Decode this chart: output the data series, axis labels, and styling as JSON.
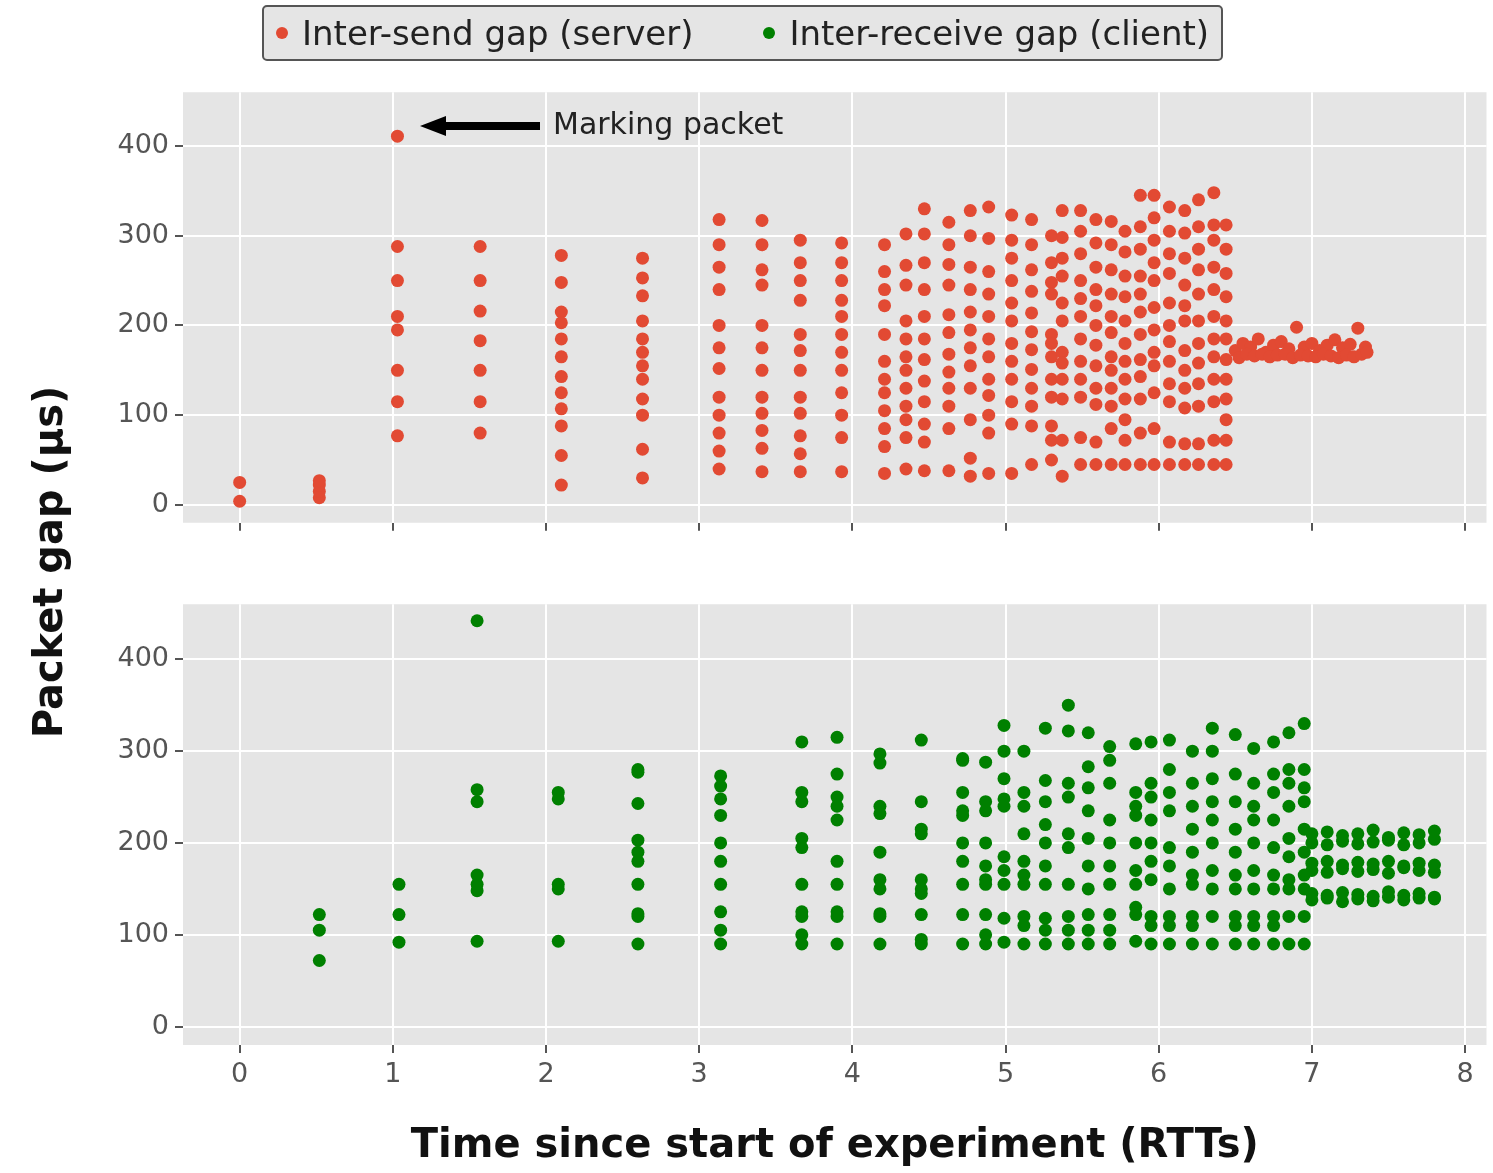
{
  "chart_data": [
    {
      "type": "scatter",
      "ylabel": "Packet gap (μs)",
      "legend": "top",
      "grid": true,
      "marker": "circle",
      "tick_labels": "y",
      "xlim": [
        -0.37,
        8.14
      ],
      "xticks": [
        0,
        1,
        2,
        3,
        4,
        5,
        6,
        7,
        8
      ],
      "ylim": [
        -20,
        460
      ],
      "yticks": [
        0,
        100,
        200,
        300,
        400
      ],
      "annotations": [
        "Marking packet"
      ],
      "series": [
        {
          "name": "Inter-send gap (server)",
          "color": "#e24a33",
          "x": [
            0,
            0,
            0.52,
            0.52,
            0.52,
            0.52,
            1.03,
            1.03,
            1.03,
            1.03,
            1.03,
            1.03,
            1.03,
            1.03,
            1.57,
            1.57,
            1.57,
            1.57,
            1.57,
            1.57,
            1.57,
            2.1,
            2.1,
            2.1,
            2.1,
            2.1,
            2.1,
            2.1,
            2.1,
            2.1,
            2.1,
            2.1,
            2.1,
            2.63,
            2.63,
            2.63,
            2.63,
            2.63,
            2.63,
            2.63,
            2.63,
            2.63,
            2.63,
            2.63,
            2.63,
            3.13,
            3.13,
            3.13,
            3.13,
            3.13,
            3.13,
            3.13,
            3.13,
            3.13,
            3.13,
            3.13,
            3.13,
            3.41,
            3.41,
            3.41,
            3.41,
            3.41,
            3.41,
            3.41,
            3.41,
            3.41,
            3.41,
            3.41,
            3.41,
            3.66,
            3.66,
            3.66,
            3.66,
            3.66,
            3.66,
            3.66,
            3.66,
            3.66,
            3.66,
            3.66,
            3.66,
            3.93,
            3.93,
            3.93,
            3.93,
            3.93,
            3.93,
            3.93,
            3.93,
            3.93,
            3.93,
            3.93,
            3.93,
            4.21,
            4.21,
            4.21,
            4.21,
            4.21,
            4.21,
            4.21,
            4.21,
            4.21,
            4.21,
            4.21,
            4.21,
            4.35,
            4.35,
            4.35,
            4.35,
            4.35,
            4.35,
            4.35,
            4.35,
            4.35,
            4.35,
            4.35,
            4.35,
            4.47,
            4.47,
            4.47,
            4.47,
            4.47,
            4.47,
            4.47,
            4.47,
            4.47,
            4.47,
            4.47,
            4.47,
            4.63,
            4.63,
            4.63,
            4.63,
            4.63,
            4.63,
            4.63,
            4.63,
            4.63,
            4.63,
            4.63,
            4.63,
            4.77,
            4.77,
            4.77,
            4.77,
            4.77,
            4.77,
            4.77,
            4.77,
            4.77,
            4.77,
            4.77,
            4.77,
            4.89,
            4.89,
            4.89,
            4.89,
            4.89,
            4.89,
            4.89,
            4.89,
            4.89,
            4.89,
            4.89,
            4.89,
            5.04,
            5.04,
            5.04,
            5.04,
            5.04,
            5.04,
            5.04,
            5.04,
            5.04,
            5.04,
            5.04,
            5.04,
            5.17,
            5.17,
            5.17,
            5.17,
            5.17,
            5.17,
            5.17,
            5.17,
            5.17,
            5.17,
            5.17,
            5.17,
            5.3,
            5.3,
            5.3,
            5.3,
            5.3,
            5.3,
            5.3,
            5.3,
            5.3,
            5.3,
            5.3,
            5.3,
            5.37,
            5.37,
            5.37,
            5.37,
            5.37,
            5.37,
            5.37,
            5.37,
            5.37,
            5.37,
            5.37,
            5.37,
            5.49,
            5.49,
            5.49,
            5.49,
            5.49,
            5.49,
            5.49,
            5.49,
            5.49,
            5.49,
            5.49,
            5.49,
            5.59,
            5.59,
            5.59,
            5.59,
            5.59,
            5.59,
            5.59,
            5.59,
            5.59,
            5.59,
            5.59,
            5.59,
            5.69,
            5.69,
            5.69,
            5.69,
            5.69,
            5.69,
            5.69,
            5.69,
            5.69,
            5.69,
            5.69,
            5.69,
            5.78,
            5.78,
            5.78,
            5.78,
            5.78,
            5.78,
            5.78,
            5.78,
            5.78,
            5.78,
            5.78,
            5.78,
            5.88,
            5.88,
            5.88,
            5.88,
            5.88,
            5.88,
            5.88,
            5.88,
            5.88,
            5.88,
            5.88,
            5.88,
            5.97,
            5.97,
            5.97,
            5.97,
            5.97,
            5.97,
            5.97,
            5.97,
            5.97,
            5.97,
            5.97,
            5.97,
            6.07,
            6.07,
            6.07,
            6.07,
            6.07,
            6.07,
            6.07,
            6.07,
            6.07,
            6.07,
            6.07,
            6.07,
            6.17,
            6.17,
            6.17,
            6.17,
            6.17,
            6.17,
            6.17,
            6.17,
            6.17,
            6.17,
            6.17,
            6.17,
            6.26,
            6.26,
            6.26,
            6.26,
            6.26,
            6.26,
            6.26,
            6.26,
            6.26,
            6.26,
            6.26,
            6.26,
            6.36,
            6.36,
            6.36,
            6.36,
            6.36,
            6.36,
            6.36,
            6.36,
            6.36,
            6.36,
            6.36,
            6.36,
            6.44,
            6.44,
            6.44,
            6.44,
            6.44,
            6.44,
            6.44,
            6.44,
            6.44,
            6.44,
            6.44,
            6.44,
            6.5,
            6.55,
            6.6,
            6.65,
            6.7,
            6.75,
            6.8,
            6.85,
            6.9,
            6.95,
            7.0,
            7.05,
            7.1,
            7.15,
            7.2,
            7.25,
            7.3,
            7.35,
            6.525,
            6.575,
            6.625,
            6.675,
            6.725,
            6.775,
            6.825,
            6.875,
            6.925,
            6.975,
            7.025,
            7.075,
            7.125,
            7.175,
            7.225,
            7.275,
            7.325,
            7.36
          ],
          "values": [
            4,
            25,
            8,
            15,
            22,
            27,
            411,
            288,
            250,
            210,
            195,
            150,
            115,
            77,
            288,
            250,
            216,
            183,
            150,
            115,
            80,
            278,
            248,
            215,
            203,
            185,
            165,
            143,
            125,
            107,
            88,
            55,
            22,
            275,
            253,
            233,
            205,
            185,
            170,
            155,
            140,
            118,
            100,
            62,
            30,
            318,
            290,
            265,
            240,
            200,
            175,
            152,
            120,
            100,
            80,
            60,
            40,
            317,
            290,
            262,
            245,
            200,
            175,
            150,
            120,
            102,
            83,
            63,
            37,
            295,
            270,
            250,
            228,
            190,
            172,
            150,
            120,
            102,
            77,
            57,
            37,
            292,
            270,
            250,
            228,
            210,
            190,
            170,
            150,
            125,
            100,
            75,
            37,
            290,
            260,
            240,
            222,
            190,
            160,
            140,
            125,
            105,
            85,
            65,
            35,
            302,
            267,
            245,
            205,
            185,
            165,
            150,
            130,
            110,
            95,
            75,
            40,
            330,
            302,
            270,
            240,
            210,
            185,
            162,
            138,
            115,
            90,
            70,
            38,
            315,
            290,
            268,
            245,
            212,
            192,
            168,
            148,
            130,
            110,
            85,
            38,
            328,
            300,
            265,
            240,
            215,
            195,
            175,
            155,
            130,
            95,
            52,
            32,
            332,
            297,
            260,
            235,
            210,
            185,
            165,
            140,
            122,
            100,
            80,
            35,
            323,
            295,
            275,
            250,
            225,
            205,
            180,
            160,
            140,
            115,
            90,
            35,
            318,
            290,
            262,
            238,
            214,
            193,
            173,
            151,
            130,
            110,
            88,
            45,
            300,
            270,
            248,
            235,
            190,
            180,
            165,
            140,
            120,
            88,
            72,
            50,
            328,
            298,
            275,
            255,
            225,
            205,
            170,
            158,
            140,
            118,
            72,
            32,
            328,
            305,
            280,
            250,
            230,
            210,
            185,
            160,
            140,
            120,
            75,
            45,
            318,
            292,
            265,
            240,
            222,
            200,
            178,
            155,
            130,
            112,
            70,
            45,
            316,
            290,
            262,
            235,
            210,
            192,
            165,
            150,
            130,
            110,
            85,
            45,
            305,
            282,
            255,
            232,
            205,
            180,
            160,
            140,
            118,
            95,
            72,
            45,
            345,
            310,
            285,
            255,
            235,
            215,
            190,
            162,
            143,
            118,
            80,
            45,
            345,
            320,
            295,
            270,
            250,
            220,
            195,
            170,
            155,
            125,
            85,
            45,
            332,
            305,
            280,
            258,
            225,
            200,
            182,
            160,
            135,
            115,
            70,
            45,
            328,
            303,
            275,
            245,
            222,
            205,
            172,
            150,
            130,
            108,
            68,
            45,
            340,
            310,
            285,
            262,
            235,
            205,
            180,
            158,
            135,
            110,
            68,
            45,
            348,
            312,
            295,
            265,
            240,
            210,
            185,
            165,
            140,
            115,
            72,
            45,
            312,
            285,
            258,
            232,
            205,
            185,
            162,
            140,
            118,
            95,
            72,
            45,
            172,
            180,
            176,
            185,
            170,
            178,
            182,
            174,
            198,
            176,
            180,
            172,
            178,
            184,
            175,
            179,
            197,
            176,
            164,
            168,
            166,
            168,
            165,
            167,
            168,
            164,
            167,
            166,
            165,
            168,
            166,
            164,
            167,
            165,
            168,
            170
          ]
        }
      ]
    },
    {
      "type": "scatter",
      "xlabel": "Time since start of experiment (RTTs)",
      "grid": true,
      "marker": "circle",
      "xlim": [
        -0.37,
        8.14
      ],
      "xticks": [
        0,
        1,
        2,
        3,
        4,
        5,
        6,
        7,
        8
      ],
      "ylim": [
        -20,
        460
      ],
      "yticks": [
        0,
        100,
        200,
        300,
        400
      ],
      "series": [
        {
          "name": "Inter-receive gap (client)",
          "color": "#008000",
          "x": [
            0.52,
            0.52,
            0.52,
            1.04,
            1.04,
            1.04,
            1.55,
            1.55,
            1.55,
            1.55,
            1.55,
            1.55,
            1.55,
            2.08,
            2.08,
            2.08,
            2.08,
            2.08,
            2.6,
            2.6,
            2.6,
            2.6,
            2.6,
            2.6,
            2.6,
            2.6,
            2.6,
            2.6,
            3.14,
            3.14,
            3.14,
            3.14,
            3.14,
            3.14,
            3.14,
            3.14,
            3.14,
            3.14,
            3.67,
            3.67,
            3.67,
            3.67,
            3.67,
            3.67,
            3.67,
            3.67,
            3.67,
            3.67,
            3.9,
            3.9,
            3.9,
            3.9,
            3.9,
            3.9,
            3.9,
            3.9,
            3.9,
            3.9,
            4.18,
            4.18,
            4.18,
            4.18,
            4.18,
            4.18,
            4.18,
            4.18,
            4.18,
            4.18,
            4.45,
            4.45,
            4.45,
            4.45,
            4.45,
            4.45,
            4.45,
            4.45,
            4.45,
            4.45,
            4.72,
            4.72,
            4.72,
            4.72,
            4.72,
            4.72,
            4.72,
            4.72,
            4.72,
            4.72,
            4.87,
            4.87,
            4.87,
            4.87,
            4.87,
            4.87,
            4.87,
            4.87,
            4.87,
            4.87,
            4.99,
            4.99,
            4.99,
            4.99,
            4.99,
            4.99,
            4.99,
            4.99,
            4.99,
            4.99,
            5.12,
            5.12,
            5.12,
            5.12,
            5.12,
            5.12,
            5.12,
            5.12,
            5.12,
            5.12,
            5.26,
            5.26,
            5.26,
            5.26,
            5.26,
            5.26,
            5.26,
            5.26,
            5.26,
            5.26,
            5.41,
            5.41,
            5.41,
            5.41,
            5.41,
            5.41,
            5.41,
            5.41,
            5.41,
            5.41,
            5.54,
            5.54,
            5.54,
            5.54,
            5.54,
            5.54,
            5.54,
            5.54,
            5.54,
            5.54,
            5.68,
            5.68,
            5.68,
            5.68,
            5.68,
            5.68,
            5.68,
            5.68,
            5.68,
            5.68,
            5.85,
            5.85,
            5.85,
            5.85,
            5.85,
            5.85,
            5.85,
            5.85,
            5.85,
            5.85,
            5.95,
            5.95,
            5.95,
            5.95,
            5.95,
            5.95,
            5.95,
            5.95,
            5.95,
            5.95,
            6.07,
            6.07,
            6.07,
            6.07,
            6.07,
            6.07,
            6.07,
            6.07,
            6.07,
            6.07,
            6.22,
            6.22,
            6.22,
            6.22,
            6.22,
            6.22,
            6.22,
            6.22,
            6.22,
            6.22,
            6.35,
            6.35,
            6.35,
            6.35,
            6.35,
            6.35,
            6.35,
            6.35,
            6.35,
            6.35,
            6.5,
            6.5,
            6.5,
            6.5,
            6.5,
            6.5,
            6.5,
            6.5,
            6.5,
            6.5,
            6.62,
            6.62,
            6.62,
            6.62,
            6.62,
            6.62,
            6.62,
            6.62,
            6.62,
            6.62,
            6.75,
            6.75,
            6.75,
            6.75,
            6.75,
            6.75,
            6.75,
            6.75,
            6.75,
            6.75,
            6.85,
            6.85,
            6.85,
            6.85,
            6.85,
            6.85,
            6.85,
            6.85,
            6.85,
            6.85,
            6.95,
            6.95,
            6.95,
            6.95,
            6.95,
            6.95,
            6.95,
            6.95,
            6.95,
            6.95,
            7.0,
            7.0,
            7.0,
            7.0,
            7.0,
            7.0,
            7.1,
            7.1,
            7.1,
            7.1,
            7.1,
            7.1,
            7.2,
            7.2,
            7.2,
            7.2,
            7.2,
            7.2,
            7.3,
            7.3,
            7.3,
            7.3,
            7.3,
            7.3,
            7.4,
            7.4,
            7.4,
            7.4,
            7.4,
            7.4,
            7.5,
            7.5,
            7.5,
            7.5,
            7.5,
            7.5,
            7.6,
            7.6,
            7.6,
            7.6,
            7.6,
            7.6,
            7.7,
            7.7,
            7.7,
            7.7,
            7.7,
            7.7,
            7.8,
            7.8,
            7.8,
            7.8,
            7.8,
            7.8
          ],
          "values": [
            122,
            105,
            72,
            155,
            122,
            92,
            442,
            258,
            245,
            165,
            155,
            148,
            93,
            255,
            248,
            155,
            150,
            93,
            280,
            277,
            243,
            203,
            190,
            180,
            155,
            123,
            120,
            90,
            273,
            262,
            248,
            230,
            200,
            180,
            155,
            125,
            105,
            90,
            310,
            255,
            245,
            205,
            195,
            155,
            125,
            120,
            100,
            90,
            315,
            275,
            250,
            240,
            225,
            180,
            155,
            125,
            120,
            90,
            297,
            287,
            240,
            232,
            190,
            160,
            150,
            123,
            120,
            90,
            312,
            245,
            215,
            210,
            160,
            150,
            145,
            122,
            95,
            90,
            292,
            290,
            255,
            235,
            230,
            200,
            180,
            155,
            122,
            90,
            288,
            245,
            235,
            200,
            175,
            160,
            155,
            122,
            100,
            90,
            328,
            300,
            270,
            248,
            240,
            185,
            170,
            155,
            118,
            92,
            300,
            255,
            240,
            210,
            180,
            165,
            155,
            120,
            110,
            90,
            325,
            268,
            245,
            220,
            200,
            175,
            155,
            118,
            105,
            90,
            350,
            322,
            265,
            250,
            210,
            195,
            155,
            120,
            105,
            90,
            320,
            283,
            260,
            235,
            205,
            175,
            150,
            122,
            105,
            90,
            305,
            290,
            265,
            225,
            200,
            175,
            155,
            122,
            105,
            90,
            308,
            255,
            240,
            230,
            200,
            170,
            155,
            130,
            122,
            93,
            310,
            265,
            250,
            225,
            200,
            180,
            160,
            120,
            110,
            90,
            312,
            280,
            255,
            235,
            195,
            175,
            150,
            120,
            110,
            90,
            300,
            265,
            240,
            215,
            190,
            165,
            155,
            120,
            110,
            90,
            325,
            300,
            270,
            245,
            225,
            200,
            170,
            150,
            120,
            90,
            318,
            275,
            245,
            215,
            190,
            165,
            150,
            120,
            110,
            90,
            303,
            265,
            240,
            225,
            200,
            170,
            150,
            120,
            110,
            90,
            310,
            275,
            255,
            225,
            195,
            165,
            150,
            120,
            110,
            90,
            320,
            280,
            265,
            240,
            205,
            185,
            160,
            150,
            120,
            90,
            330,
            280,
            260,
            245,
            215,
            190,
            165,
            150,
            120,
            90,
            210,
            200,
            178,
            170,
            145,
            138,
            212,
            198,
            180,
            168,
            143,
            140,
            208,
            202,
            176,
            172,
            146,
            136,
            210,
            199,
            179,
            169,
            144,
            139,
            214,
            201,
            177,
            171,
            142,
            137,
            206,
            203,
            180,
            167,
            147,
            141,
            211,
            198,
            175,
            173,
            143,
            138,
            209,
            200,
            178,
            170,
            145,
            140,
            213,
            204,
            176,
            168,
            141,
            139
          ]
        }
      ]
    }
  ]
}
